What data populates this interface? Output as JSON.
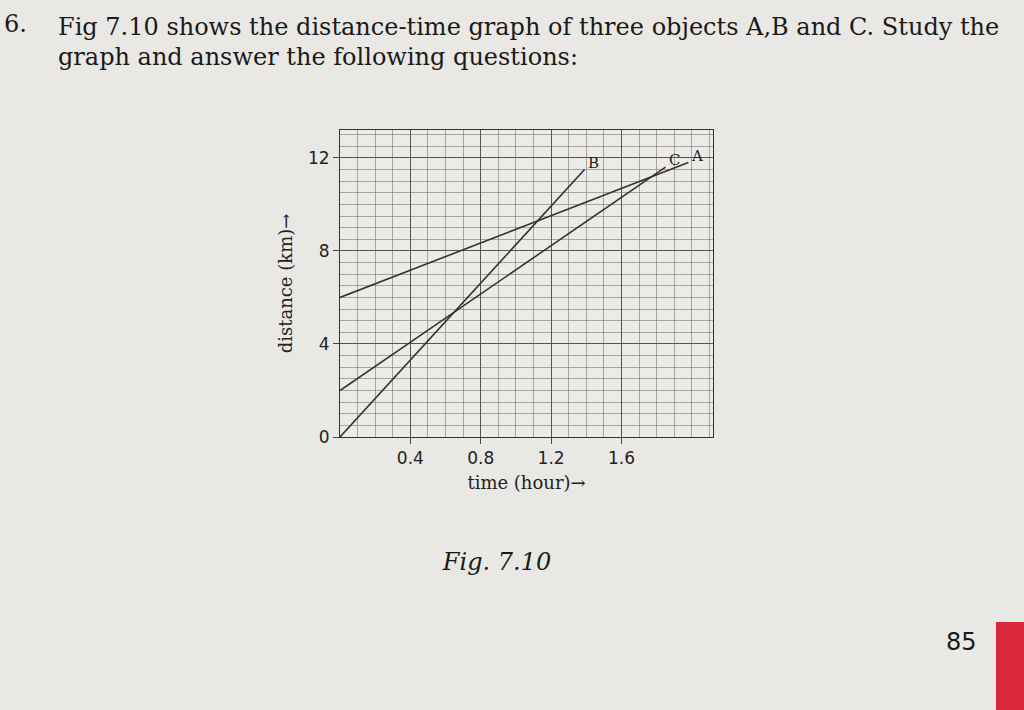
{
  "question_number": "6.",
  "question": "Fig 7.10 shows the distance-time graph of three objects A,B and C. Study the graph and answer the following questions:",
  "caption": "Fig. 7.10",
  "page_number": "85",
  "chart_data": {
    "type": "line",
    "x_label": "time (hour)→",
    "y_label": "distance (km)→",
    "series": [
      {
        "name": "A",
        "color": "#333333",
        "x": [
          0,
          1.98
        ],
        "values": [
          6,
          11.8
        ]
      },
      {
        "name": "B",
        "color": "#333333",
        "x": [
          0,
          1.39
        ],
        "values": [
          0,
          11.5
        ]
      },
      {
        "name": "C",
        "color": "#333333",
        "x": [
          0,
          1.85
        ],
        "values": [
          2,
          11.6
        ]
      }
    ],
    "xlim": [
      0,
      2.12
    ],
    "ylim": [
      0,
      13.2
    ],
    "xticks": [
      0.4,
      0.8,
      1.2,
      1.6
    ],
    "yticks": [
      0,
      4,
      8,
      12
    ],
    "grid": true
  }
}
